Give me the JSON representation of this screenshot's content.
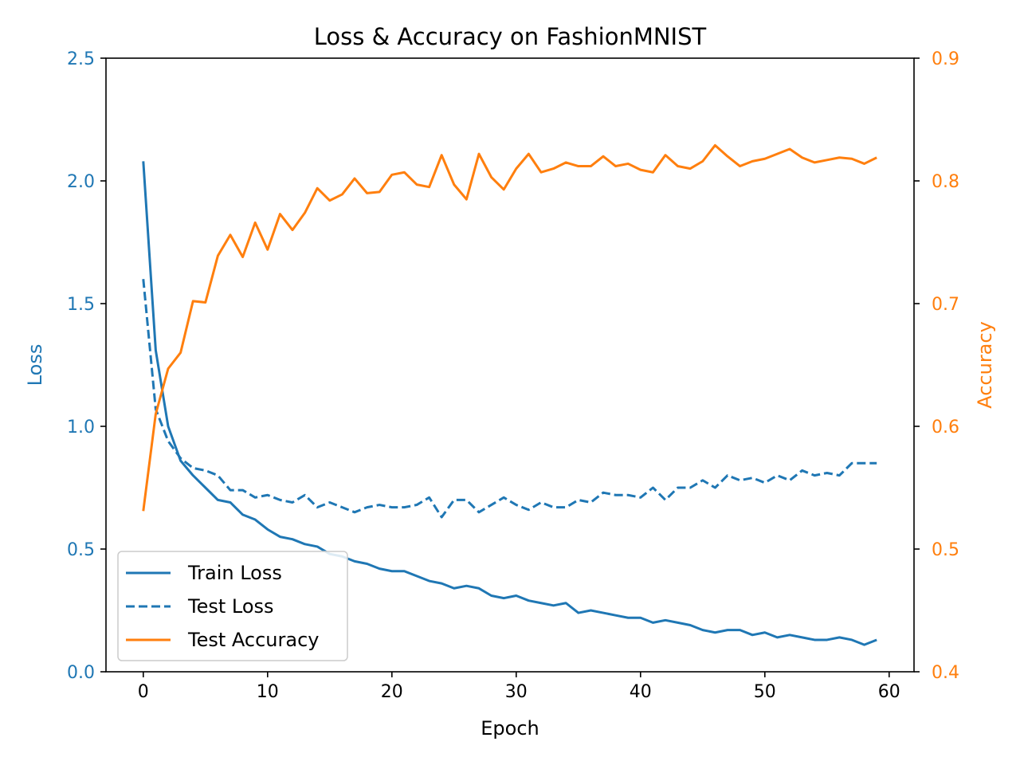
{
  "chart_data": {
    "type": "line",
    "title": "Loss & Accuracy on FashionMNIST",
    "xlabel": "Epoch",
    "ylabel_left": "Loss",
    "ylabel_right": "Accuracy",
    "xlim": [
      -3,
      62
    ],
    "ylim_left": [
      0,
      2.5
    ],
    "ylim_right": [
      0.4,
      0.9
    ],
    "x_ticks": [
      0,
      10,
      20,
      30,
      40,
      50,
      60
    ],
    "x_tick_labels": [
      "0",
      "10",
      "20",
      "30",
      "40",
      "50",
      "60"
    ],
    "y_left_ticks": [
      0.0,
      0.5,
      1.0,
      1.5,
      2.0,
      2.5
    ],
    "y_left_tick_labels": [
      "0.0",
      "0.5",
      "1.0",
      "1.5",
      "2.0",
      "2.5"
    ],
    "y_right_ticks": [
      0.4,
      0.5,
      0.6,
      0.7,
      0.8,
      0.9
    ],
    "y_right_tick_labels": [
      "0.4",
      "0.5",
      "0.6",
      "0.7",
      "0.8",
      "0.9"
    ],
    "grid": false,
    "legend_position": "lower-left",
    "colors": {
      "loss": "#1f77b4",
      "accuracy": "#ff7f0e"
    },
    "x": [
      0,
      1,
      2,
      3,
      4,
      5,
      6,
      7,
      8,
      9,
      10,
      11,
      12,
      13,
      14,
      15,
      16,
      17,
      18,
      19,
      20,
      21,
      22,
      23,
      24,
      25,
      26,
      27,
      28,
      29,
      30,
      31,
      32,
      33,
      34,
      35,
      36,
      37,
      38,
      39,
      40,
      41,
      42,
      43,
      44,
      45,
      46,
      47,
      48,
      49,
      50,
      51,
      52,
      53,
      54,
      55,
      56,
      57,
      58,
      59
    ],
    "series": [
      {
        "name": "Train Loss",
        "axis": "left",
        "color": "#1f77b4",
        "style": "solid",
        "values": [
          2.08,
          1.31,
          1.0,
          0.86,
          0.8,
          0.75,
          0.7,
          0.69,
          0.64,
          0.62,
          0.58,
          0.55,
          0.54,
          0.52,
          0.51,
          0.48,
          0.47,
          0.45,
          0.44,
          0.42,
          0.41,
          0.41,
          0.39,
          0.37,
          0.36,
          0.34,
          0.35,
          0.34,
          0.31,
          0.3,
          0.31,
          0.29,
          0.28,
          0.27,
          0.28,
          0.24,
          0.25,
          0.24,
          0.23,
          0.22,
          0.22,
          0.2,
          0.21,
          0.2,
          0.19,
          0.17,
          0.16,
          0.17,
          0.17,
          0.15,
          0.16,
          0.14,
          0.15,
          0.14,
          0.13,
          0.13,
          0.14,
          0.13,
          0.11,
          0.13
        ]
      },
      {
        "name": "Test Loss",
        "axis": "left",
        "color": "#1f77b4",
        "style": "dashed",
        "values": [
          1.6,
          1.07,
          0.94,
          0.87,
          0.83,
          0.82,
          0.8,
          0.74,
          0.74,
          0.71,
          0.72,
          0.7,
          0.69,
          0.72,
          0.67,
          0.69,
          0.67,
          0.65,
          0.67,
          0.68,
          0.67,
          0.67,
          0.68,
          0.71,
          0.63,
          0.7,
          0.7,
          0.65,
          0.68,
          0.71,
          0.68,
          0.66,
          0.69,
          0.67,
          0.67,
          0.7,
          0.69,
          0.73,
          0.72,
          0.72,
          0.71,
          0.75,
          0.7,
          0.75,
          0.75,
          0.78,
          0.75,
          0.8,
          0.78,
          0.79,
          0.77,
          0.8,
          0.78,
          0.82,
          0.8,
          0.81,
          0.8,
          0.85,
          0.85,
          0.85
        ]
      },
      {
        "name": "Test Accuracy",
        "axis": "right",
        "color": "#ff7f0e",
        "style": "solid",
        "values": [
          0.531,
          0.61,
          0.647,
          0.66,
          0.702,
          0.701,
          0.739,
          0.756,
          0.738,
          0.766,
          0.744,
          0.773,
          0.76,
          0.774,
          0.794,
          0.784,
          0.789,
          0.802,
          0.79,
          0.791,
          0.805,
          0.807,
          0.797,
          0.795,
          0.821,
          0.797,
          0.785,
          0.822,
          0.803,
          0.793,
          0.81,
          0.822,
          0.807,
          0.81,
          0.815,
          0.812,
          0.812,
          0.82,
          0.812,
          0.814,
          0.809,
          0.807,
          0.821,
          0.812,
          0.81,
          0.816,
          0.829,
          0.82,
          0.812,
          0.816,
          0.818,
          0.822,
          0.826,
          0.819,
          0.815,
          0.817,
          0.819,
          0.818,
          0.814,
          0.819
        ]
      }
    ]
  }
}
